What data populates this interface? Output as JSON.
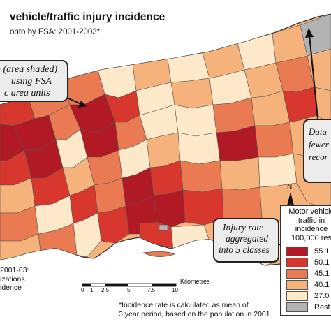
{
  "title": "vehicle/traffic injury incidence",
  "subtitle": "onto by FSA:  2001-2003*",
  "callouts": {
    "left": [
      "h (area shaded)",
      "using FSA",
      "c area units"
    ],
    "right": [
      "Data",
      "fewer",
      "recor"
    ],
    "middle": [
      "Injury rate",
      "aggregated",
      "into 5 classes"
    ]
  },
  "legend": {
    "title_lines": [
      "Motor vehicle",
      "traffic in",
      "incidence",
      "100,000 res"
    ],
    "items": [
      {
        "label": "55.1",
        "color": "#b11a25"
      },
      {
        "label": "50.1",
        "color": "#d7372d"
      },
      {
        "label": "45.1",
        "color": "#ea7a52"
      },
      {
        "label": "40.1",
        "color": "#f5b27a"
      },
      {
        "label": "27.0",
        "color": "#fde9c9"
      },
      {
        "label": "Rest",
        "color": "#b3b3b3"
      }
    ]
  },
  "scale_bar": {
    "ticks": [
      "0",
      "1",
      "2.5",
      "5",
      "7.5",
      "10"
    ],
    "unit": "Kilometres"
  },
  "north_label": "N",
  "footnote": [
    "*Incidence rate is calculated as mean of",
    "3 year period, based on the population in 2001"
  ],
  "side_note": [
    "2001-03:",
    "izations",
    "idence"
  ],
  "colors": {
    "c1": "#b11a25",
    "c2": "#d7372d",
    "c3": "#ea7a52",
    "c4": "#f5b27a",
    "c5": "#fde9c9",
    "restricted": "#b3b3b3"
  }
}
